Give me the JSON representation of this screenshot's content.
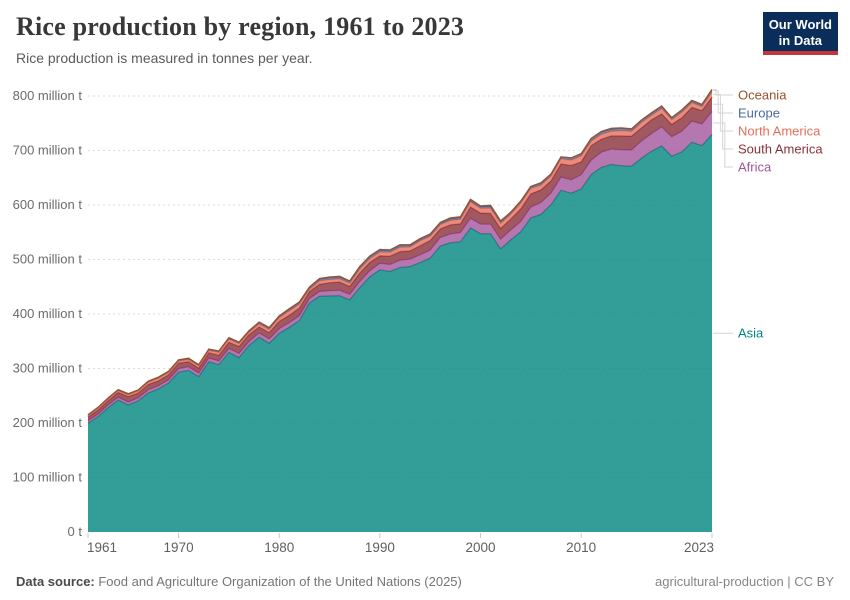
{
  "header": {
    "title": "Rice production by region, 1961 to 2023",
    "subtitle": "Rice production is measured in tonnes per year."
  },
  "logo": {
    "line1": "Our World",
    "line2": "in Data",
    "bg_color": "#0b2d5b",
    "accent_color": "#c0373e"
  },
  "footer": {
    "source_label": "Data source:",
    "source_text": " Food and Agriculture Organization of the United Nations (2025)",
    "note": "agricultural-production | CC BY"
  },
  "chart_data": {
    "type": "area",
    "stacked": true,
    "title": "Rice production by region, 1961 to 2023",
    "xlabel": "",
    "ylabel": "tonnes per year",
    "ylim": [
      0,
      800
    ],
    "grid": "dashed horizontal gridlines",
    "grid_color": "#dcdcdc",
    "legend_position": "right edge, connector lines to band ends",
    "legend_order": [
      "Oceania",
      "Europe",
      "North America",
      "South America",
      "Africa",
      "Asia"
    ],
    "x_start": 1961,
    "x_end": 2023,
    "x_ticks": [
      1961,
      1970,
      1980,
      1990,
      2000,
      2010,
      2023
    ],
    "y_ticks": [
      {
        "value": 0,
        "label": "0 t"
      },
      {
        "value": 100,
        "label": "100 million t"
      },
      {
        "value": 200,
        "label": "200 million t"
      },
      {
        "value": 300,
        "label": "300 million t"
      },
      {
        "value": 400,
        "label": "400 million t"
      },
      {
        "value": 500,
        "label": "500 million t"
      },
      {
        "value": 600,
        "label": "600 million t"
      },
      {
        "value": 700,
        "label": "700 million t"
      },
      {
        "value": 800,
        "label": "800 million t"
      }
    ],
    "x": [
      1961,
      1962,
      1963,
      1964,
      1965,
      1966,
      1967,
      1968,
      1969,
      1970,
      1971,
      1972,
      1973,
      1974,
      1975,
      1976,
      1977,
      1978,
      1979,
      1980,
      1981,
      1982,
      1983,
      1984,
      1985,
      1986,
      1987,
      1988,
      1989,
      1990,
      1991,
      1992,
      1993,
      1994,
      1995,
      1996,
      1997,
      1998,
      1999,
      2000,
      2001,
      2002,
      2003,
      2004,
      2005,
      2006,
      2007,
      2008,
      2009,
      2010,
      2011,
      2012,
      2013,
      2014,
      2015,
      2016,
      2017,
      2018,
      2019,
      2020,
      2021,
      2022,
      2023
    ],
    "unit": "million tonnes",
    "series": [
      {
        "name": "Asia",
        "color": "#00847e",
        "values": [
          199.6,
          211.9,
          228.2,
          242.2,
          233.2,
          240.9,
          255.3,
          262.7,
          273.2,
          293.4,
          296.5,
          285.2,
          312.4,
          306.9,
          329.5,
          320.2,
          342.2,
          357.4,
          346.2,
          364.5,
          375.6,
          388.1,
          420.3,
          432.5,
          433.2,
          433.6,
          426.1,
          448.5,
          468.2,
          481.1,
          478.0,
          485.4,
          487.2,
          494.4,
          502.6,
          524.7,
          530.6,
          532.6,
          558.0,
          547.6,
          547.4,
          519.6,
          535.9,
          551.0,
          576.3,
          582.8,
          600.7,
          627.2,
          621.7,
          629.4,
          656.1,
          668.9,
          674.5,
          671.9,
          671.3,
          686.1,
          698.7,
          708.5,
          689.5,
          697.4,
          715.2,
          709.0,
          729.5
        ]
      },
      {
        "name": "Africa",
        "color": "#a2559c",
        "values": [
          4.4,
          4.7,
          5.0,
          5.2,
          5.1,
          5.3,
          5.6,
          5.7,
          5.9,
          6.4,
          6.6,
          6.4,
          6.6,
          7.0,
          7.2,
          7.4,
          7.4,
          7.7,
          7.9,
          8.6,
          8.7,
          8.8,
          8.0,
          8.7,
          9.5,
          10.0,
          9.8,
          10.9,
          11.3,
          12.1,
          12.9,
          13.3,
          13.5,
          14.3,
          14.6,
          15.7,
          16.2,
          16.9,
          17.6,
          17.4,
          17.3,
          17.7,
          18.3,
          19.0,
          20.1,
          21.7,
          21.1,
          24.1,
          24.6,
          26.1,
          26.2,
          27.9,
          28.3,
          29.6,
          29.7,
          31.6,
          32.3,
          34.8,
          35.6,
          38.1,
          38.8,
          39.6,
          42.0
        ]
      },
      {
        "name": "South America",
        "color": "#883039",
        "values": [
          6.9,
          7.5,
          7.7,
          8.7,
          10.2,
          8.9,
          9.9,
          9.0,
          9.3,
          10.1,
          9.6,
          9.2,
          10.0,
          10.5,
          11.5,
          12.9,
          12.4,
          11.0,
          11.7,
          13.4,
          13.3,
          14.2,
          12.9,
          13.3,
          14.5,
          15.1,
          14.7,
          15.9,
          15.2,
          13.5,
          15.3,
          15.8,
          15.1,
          16.7,
          17.6,
          15.8,
          16.6,
          16.0,
          20.7,
          20.4,
          19.8,
          19.5,
          19.9,
          23.1,
          24.0,
          23.2,
          22.4,
          24.2,
          26.1,
          23.5,
          26.6,
          23.9,
          24.0,
          25.2,
          25.4,
          23.7,
          25.5,
          23.8,
          22.8,
          24.5,
          25.1,
          24.7,
          26.5
        ]
      },
      {
        "name": "North America",
        "color": "#e56e5a",
        "values": [
          2.5,
          3.0,
          3.2,
          3.3,
          3.5,
          3.9,
          4.1,
          4.7,
          4.2,
          3.8,
          3.9,
          3.9,
          4.2,
          5.1,
          5.8,
          5.2,
          4.5,
          6.0,
          6.0,
          6.6,
          8.3,
          7.0,
          4.5,
          6.3,
          6.1,
          6.1,
          5.8,
          7.3,
          7.0,
          7.1,
          7.2,
          8.1,
          7.1,
          9.0,
          7.9,
          7.8,
          8.3,
          8.5,
          9.5,
          8.7,
          9.8,
          9.6,
          9.1,
          10.5,
          10.1,
          8.8,
          9.0,
          9.2,
          10.0,
          11.0,
          8.4,
          9.0,
          8.6,
          10.0,
          8.7,
          10.2,
          8.1,
          10.2,
          8.4,
          10.3,
          8.7,
          7.3,
          9.8
        ]
      },
      {
        "name": "Europe",
        "color": "#4c6a9c",
        "values": [
          1.4,
          1.5,
          1.5,
          1.6,
          1.6,
          1.6,
          1.8,
          1.8,
          1.9,
          1.9,
          2.0,
          2.0,
          2.1,
          2.2,
          2.2,
          2.3,
          2.4,
          2.6,
          2.7,
          2.8,
          3.0,
          3.2,
          3.3,
          3.5,
          3.6,
          3.5,
          3.6,
          3.7,
          3.8,
          3.7,
          3.5,
          3.4,
          3.1,
          2.9,
          3.0,
          3.1,
          3.2,
          3.1,
          3.2,
          3.2,
          3.3,
          3.3,
          3.2,
          3.4,
          3.4,
          3.4,
          3.5,
          3.5,
          4.0,
          4.1,
          4.3,
          4.2,
          4.1,
          4.0,
          4.1,
          4.1,
          4.0,
          3.9,
          4.0,
          4.0,
          3.9,
          3.4,
          3.8
        ]
      },
      {
        "name": "Oceania",
        "color": "#9a5129",
        "values": [
          0.2,
          0.2,
          0.2,
          0.2,
          0.2,
          0.2,
          0.3,
          0.3,
          0.3,
          0.3,
          0.3,
          0.4,
          0.3,
          0.4,
          0.5,
          0.5,
          0.5,
          0.6,
          0.7,
          0.7,
          0.9,
          0.9,
          0.6,
          0.9,
          0.9,
          0.8,
          0.7,
          0.8,
          0.9,
          1.0,
          0.8,
          1.1,
          1.1,
          1.1,
          1.2,
          1.0,
          1.4,
          1.4,
          1.4,
          1.1,
          1.8,
          1.3,
          0.4,
          0.6,
          0.3,
          1.0,
          0.2,
          0.1,
          0.1,
          0.2,
          0.7,
          0.9,
          1.2,
          0.8,
          0.7,
          0.3,
          0.8,
          0.6,
          0.1,
          0.1,
          0.4,
          0.7,
          0.5
        ]
      }
    ]
  }
}
